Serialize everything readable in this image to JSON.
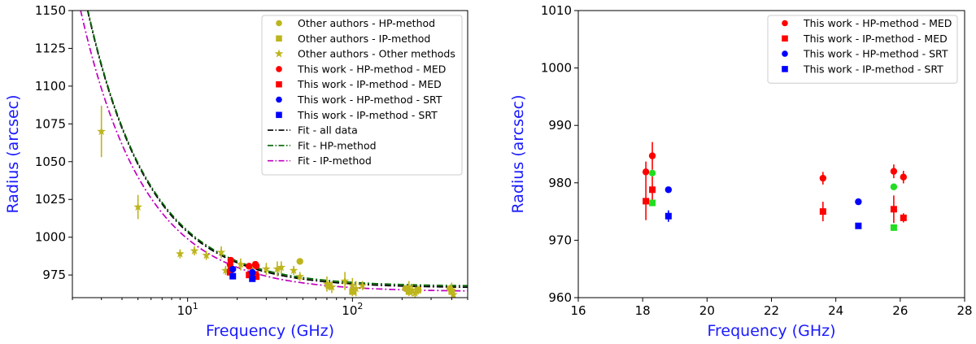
{
  "colors": {
    "other": "#bdb51c",
    "med": "#ff0000",
    "srt": "#0000ff",
    "green": "#22dd22",
    "fit_all": "#000000",
    "fit_hp": "#006400",
    "fit_ip": "#c000c0",
    "axis_label": "#1a1aff"
  },
  "chart_data": [
    {
      "type": "scatter",
      "xscale": "log",
      "xlim": [
        2,
        500
      ],
      "ylim": [
        960,
        1150
      ],
      "xlabel": "Frequency (GHz)",
      "ylabel": "Radius (arcsec)",
      "xticks": [
        {
          "value": 10,
          "base": "10",
          "exp": "1"
        },
        {
          "value": 100,
          "base": "10",
          "exp": "2"
        }
      ],
      "yticks": [
        "975",
        "1000",
        "1025",
        "1050",
        "1075",
        "1100",
        "1125",
        "1150"
      ],
      "legend": {
        "placement": "top-right",
        "entries": [
          {
            "label": "Other authors - HP-method",
            "marker": "circle",
            "color": "other"
          },
          {
            "label": "Other authors - IP-method",
            "marker": "square",
            "color": "other"
          },
          {
            "label": "Other authors - Other methods",
            "marker": "star",
            "color": "other"
          },
          {
            "label": "This work - HP-method - MED",
            "marker": "circle",
            "color": "med"
          },
          {
            "label": "This work - IP-method - MED",
            "marker": "square",
            "color": "med"
          },
          {
            "label": "This work - HP-method - SRT",
            "marker": "circle",
            "color": "srt"
          },
          {
            "label": "This work - IP-method - SRT",
            "marker": "square",
            "color": "srt"
          },
          {
            "label": "Fit - all data",
            "marker": "line",
            "color": "fit_all"
          },
          {
            "label": "Fit - HP-method",
            "marker": "line",
            "color": "fit_hp"
          },
          {
            "label": "Fit - IP-method",
            "marker": "line",
            "color": "fit_ip"
          }
        ]
      },
      "fits": [
        {
          "color": "fit_all",
          "a": 966.5,
          "b": 520,
          "c": 1.15
        },
        {
          "color": "fit_hp",
          "a": 967.5,
          "b": 520,
          "c": 1.15
        },
        {
          "color": "fit_ip",
          "a": 964.0,
          "b": 460,
          "c": 1.12
        }
      ],
      "series": [
        {
          "marker": "star",
          "color": "other",
          "points": [
            [
              3,
              1070,
              17
            ],
            [
              5,
              1020,
              8
            ],
            [
              9,
              989,
              3
            ],
            [
              11,
              991,
              3
            ],
            [
              13,
              988,
              3
            ],
            [
              16,
              990,
              4
            ],
            [
              17,
              978,
              3
            ],
            [
              21,
              982,
              4
            ],
            [
              25,
              981,
              3
            ],
            [
              30,
              979,
              4
            ],
            [
              35,
              979,
              5
            ],
            [
              37,
              980,
              4
            ],
            [
              44,
              978,
              3
            ],
            [
              48,
              974,
              3
            ],
            [
              70,
              969,
              5
            ],
            [
              75,
              967,
              4
            ],
            [
              90,
              971,
              6
            ],
            [
              100,
              968,
              5
            ],
            [
              105,
              966,
              5
            ],
            [
              115,
              968,
              3
            ],
            [
              220,
              967,
              4
            ],
            [
              230,
              965,
              4
            ],
            [
              240,
              963,
              4
            ],
            [
              400,
              965,
              5
            ],
            [
              410,
              962,
              4
            ]
          ]
        },
        {
          "marker": "circle",
          "color": "other",
          "points": [
            [
              48,
              984,
              0
            ],
            [
              210,
              966,
              0
            ],
            [
              390,
              966,
              0
            ]
          ]
        },
        {
          "marker": "square",
          "color": "other",
          "points": [
            [
              72,
              968,
              3
            ],
            [
              100,
              964,
              3
            ],
            [
              220,
              964,
              3
            ],
            [
              250,
              965,
              3
            ],
            [
              400,
              964,
              3
            ]
          ]
        },
        {
          "marker": "circle",
          "color": "med",
          "points": [
            [
              18.1,
              981.9,
              0
            ],
            [
              18.3,
              984.7,
              0
            ],
            [
              23.6,
              980.8,
              0
            ],
            [
              25.8,
              982.0,
              0
            ],
            [
              26.1,
              981.0,
              0
            ]
          ]
        },
        {
          "marker": "square",
          "color": "med",
          "points": [
            [
              18.1,
              976.8,
              0
            ],
            [
              18.3,
              978.8,
              0
            ],
            [
              23.6,
              975.0,
              0
            ],
            [
              25.8,
              975.4,
              0
            ],
            [
              26.1,
              973.9,
              0
            ]
          ]
        },
        {
          "marker": "circle",
          "color": "srt",
          "points": [
            [
              18.8,
              978.8,
              0
            ],
            [
              24.7,
              976.7,
              0
            ]
          ]
        },
        {
          "marker": "square",
          "color": "srt",
          "points": [
            [
              18.8,
              974.2,
              0
            ],
            [
              24.7,
              972.5,
              0
            ]
          ]
        }
      ]
    },
    {
      "type": "scatter",
      "xlim": [
        16,
        28
      ],
      "ylim": [
        960,
        1010
      ],
      "xlabel": "Frequency (GHz)",
      "ylabel": "Radius (arcsec)",
      "xticks": [
        "16",
        "18",
        "20",
        "22",
        "24",
        "26",
        "28"
      ],
      "yticks": [
        "960",
        "970",
        "980",
        "990",
        "1000",
        "1010"
      ],
      "legend": {
        "placement": "top-right",
        "entries": [
          {
            "label": "This work - HP-method - MED",
            "marker": "circle",
            "color": "med"
          },
          {
            "label": "This work - IP-method - MED",
            "marker": "square",
            "color": "med"
          },
          {
            "label": "This work - HP-method - SRT",
            "marker": "circle",
            "color": "srt"
          },
          {
            "label": "This work - IP-method - SRT",
            "marker": "square",
            "color": "srt"
          }
        ]
      },
      "series": [
        {
          "marker": "circle",
          "color": "med",
          "points": [
            [
              18.1,
              981.9,
              1.8
            ],
            [
              18.3,
              984.7,
              2.4
            ],
            [
              23.6,
              980.8,
              1.1
            ],
            [
              25.8,
              982.0,
              1.2
            ],
            [
              26.1,
              981.0,
              1.1
            ]
          ]
        },
        {
          "marker": "square",
          "color": "med",
          "points": [
            [
              18.1,
              976.8,
              3.3
            ],
            [
              18.3,
              978.8,
              2.3
            ],
            [
              23.6,
              975.0,
              1.7
            ],
            [
              25.8,
              975.4,
              2.4
            ],
            [
              26.1,
              973.9,
              0.8
            ]
          ]
        },
        {
          "marker": "circle",
          "color": "srt",
          "points": [
            [
              18.8,
              978.8,
              0.2
            ],
            [
              24.7,
              976.7,
              0.5
            ]
          ]
        },
        {
          "marker": "square",
          "color": "srt",
          "points": [
            [
              18.8,
              974.2,
              1.0
            ],
            [
              24.7,
              972.5,
              0.3
            ]
          ]
        },
        {
          "marker": "circle",
          "color": "green",
          "points": [
            [
              18.3,
              981.7,
              0
            ],
            [
              25.8,
              979.3,
              0
            ]
          ]
        },
        {
          "marker": "square",
          "color": "green",
          "points": [
            [
              18.3,
              976.5,
              0
            ],
            [
              25.8,
              972.2,
              0
            ]
          ]
        }
      ]
    }
  ]
}
